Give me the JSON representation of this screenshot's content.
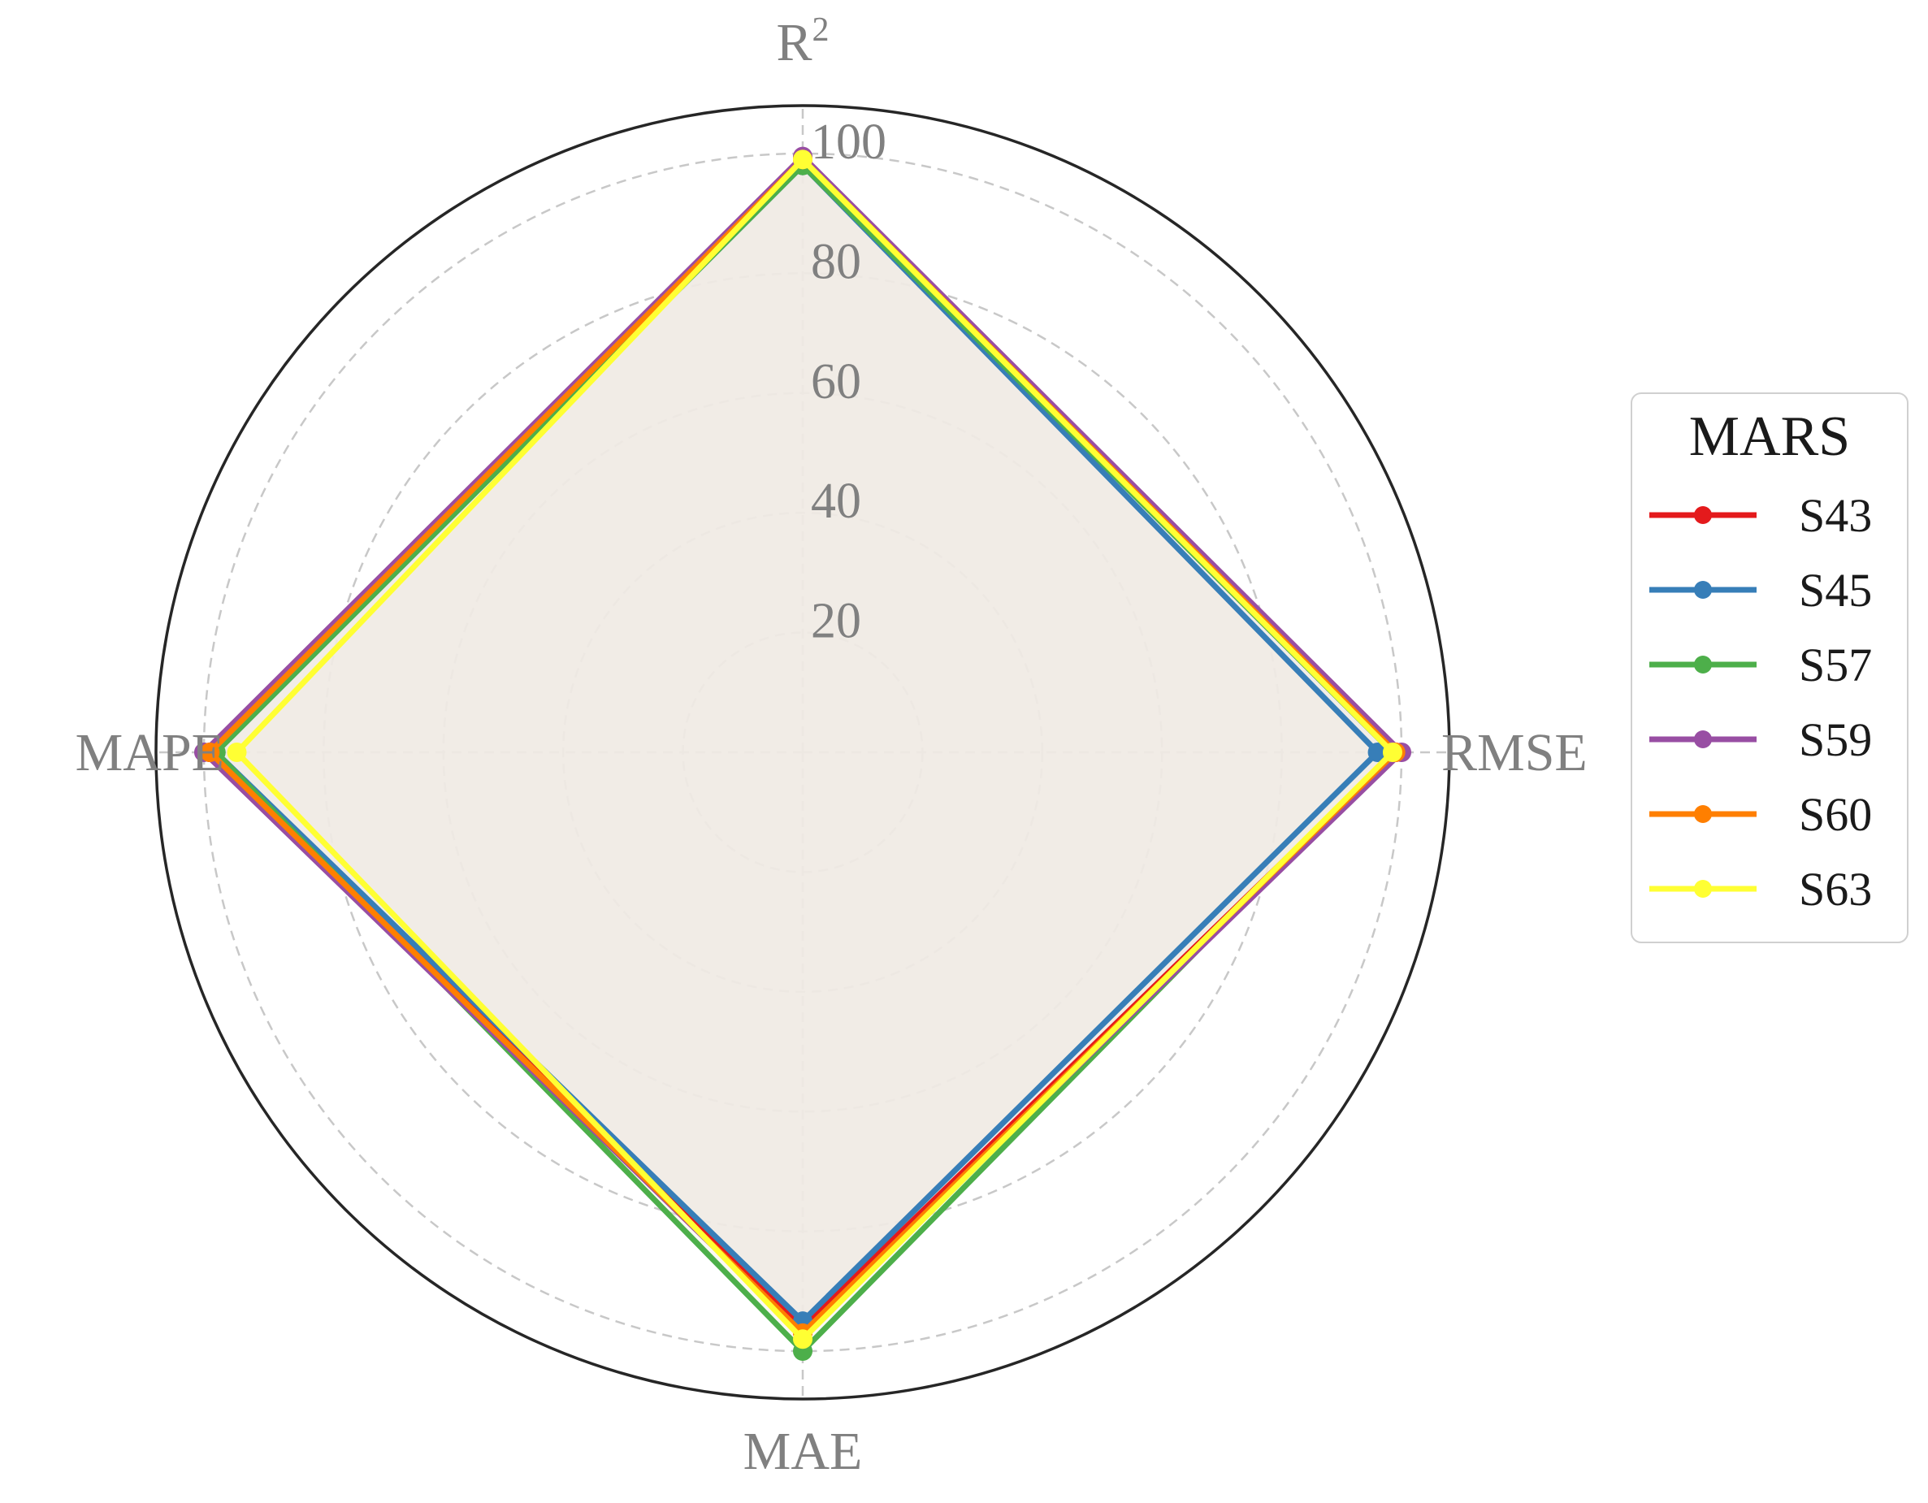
{
  "chart_data": {
    "type": "radar",
    "axes": [
      "R",
      "RMSE",
      "MAE",
      "MAPE"
    ],
    "r2_superscript": "2",
    "ticks": [
      20,
      40,
      60,
      80,
      100
    ],
    "rlim": [
      0,
      108
    ],
    "grid": true,
    "legend": {
      "title": "MARS",
      "placement": "right"
    },
    "series": [
      {
        "name": "S43",
        "color": "#e41a1c",
        "values": [
          99.0,
          99.0,
          96.0,
          99.0
        ]
      },
      {
        "name": "S45",
        "color": "#377eb8",
        "values": [
          98.0,
          96.0,
          95.0,
          98.0
        ]
      },
      {
        "name": "S57",
        "color": "#4daf4a",
        "values": [
          98.0,
          98.5,
          100.0,
          98.0
        ]
      },
      {
        "name": "S59",
        "color": "#984ea3",
        "values": [
          99.5,
          100.0,
          97.0,
          100.0
        ]
      },
      {
        "name": "S60",
        "color": "#ff7f00",
        "values": [
          99.0,
          99.0,
          97.0,
          99.0
        ]
      },
      {
        "name": "S63",
        "color": "#ffff33",
        "values": [
          99.0,
          98.5,
          98.0,
          94.5
        ]
      }
    ],
    "fill_color": "#f0ebe5"
  }
}
